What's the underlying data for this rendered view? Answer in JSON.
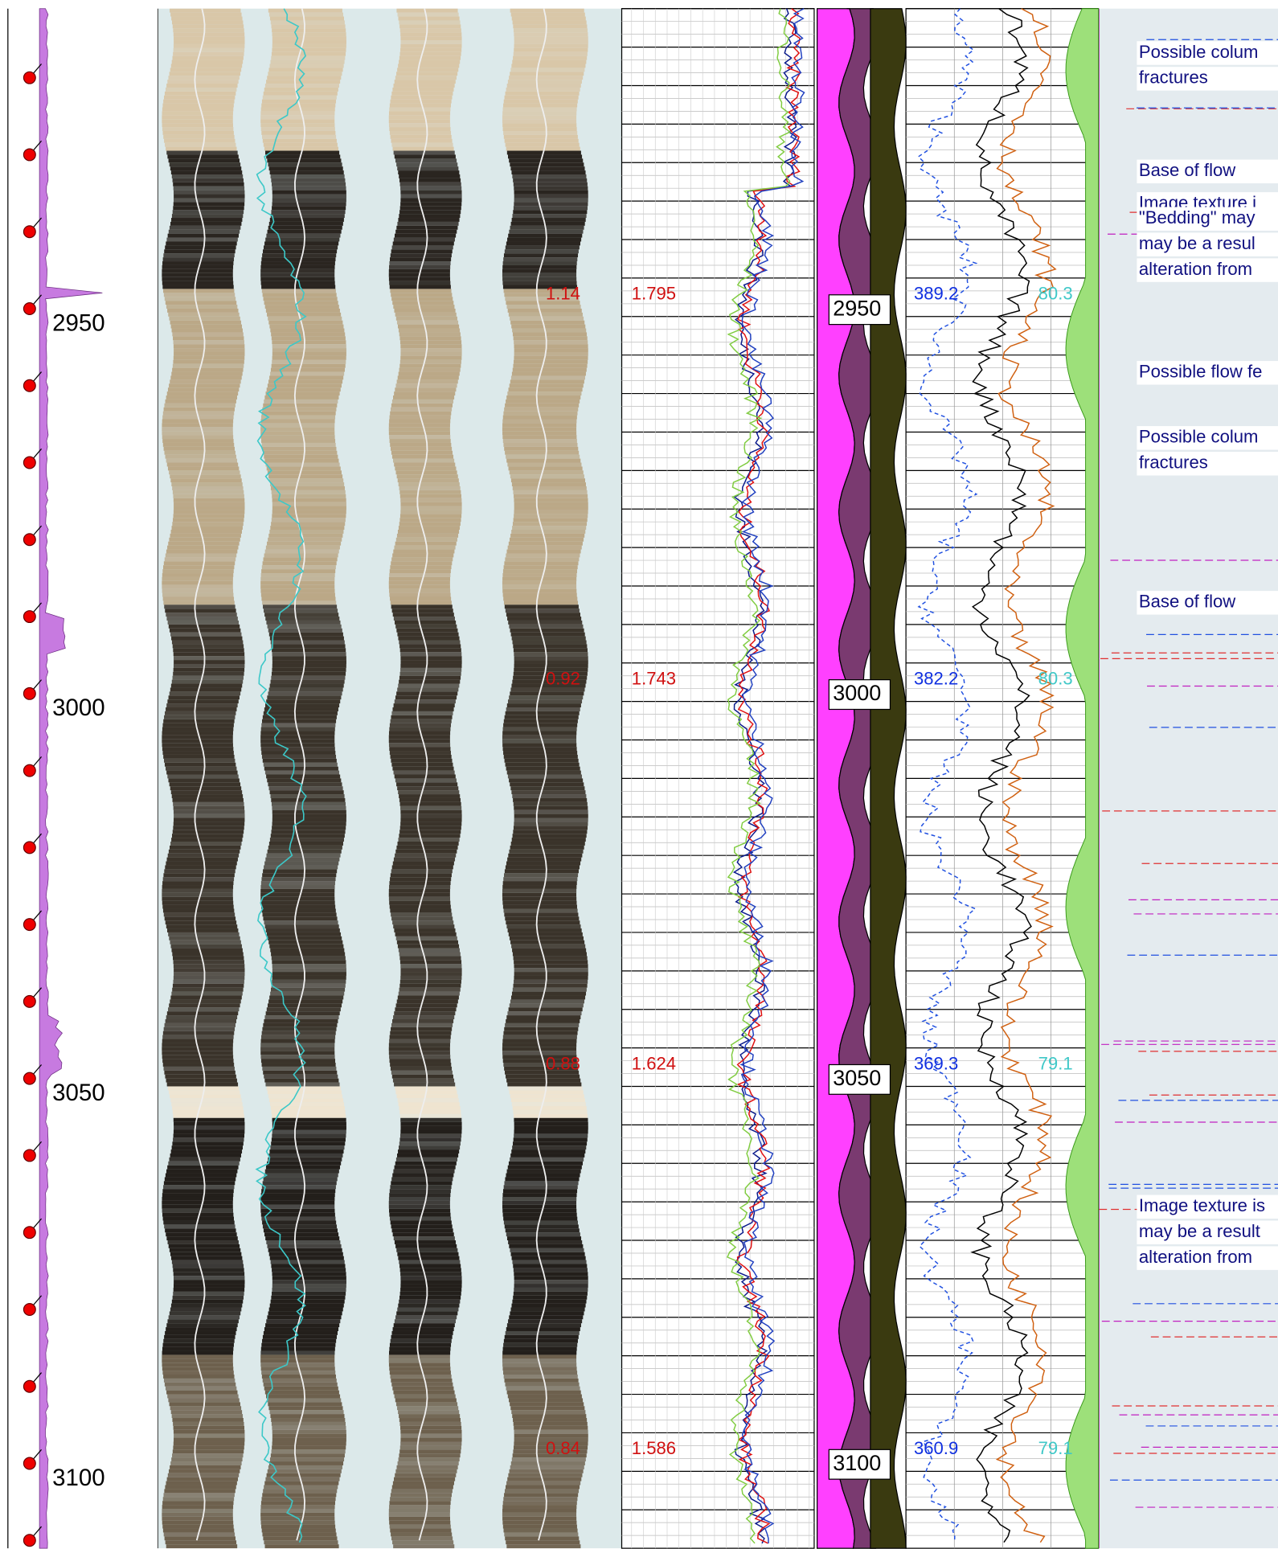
{
  "depth_track": {
    "labels": [
      2950,
      3000,
      3050,
      3100
    ]
  },
  "image_track": {
    "labels": [
      "1.14",
      "0.92",
      "0.88",
      "0.84"
    ]
  },
  "log_track": {
    "labels": [
      "1.795",
      "1.743",
      "1.624",
      "1.586"
    ]
  },
  "lithology_track": {
    "labels": [
      2950,
      3000,
      3050,
      3100
    ]
  },
  "spectral_track": {
    "left_labels": [
      "389.2",
      "382.2",
      "369.3",
      "360.9"
    ],
    "right_labels": [
      "80.3",
      "80.3",
      "79.1",
      "79.1"
    ]
  },
  "annotations": [
    {
      "lines": [
        "Possible colum",
        "fractures"
      ]
    },
    {
      "lines": [
        "Base of flow"
      ]
    },
    {
      "lines": [
        "Image texture i"
      ]
    },
    {
      "lines": [
        "\"Bedding\" may",
        "may be a resul",
        "alteration from"
      ]
    },
    {
      "lines": [
        "Possible flow fe"
      ]
    },
    {
      "lines": [
        "Possible colum",
        "fractures"
      ]
    },
    {
      "lines": [
        "Base of flow"
      ]
    },
    {
      "lines": [
        "Image texture is",
        "may be a result",
        "alteration from"
      ]
    }
  ]
}
